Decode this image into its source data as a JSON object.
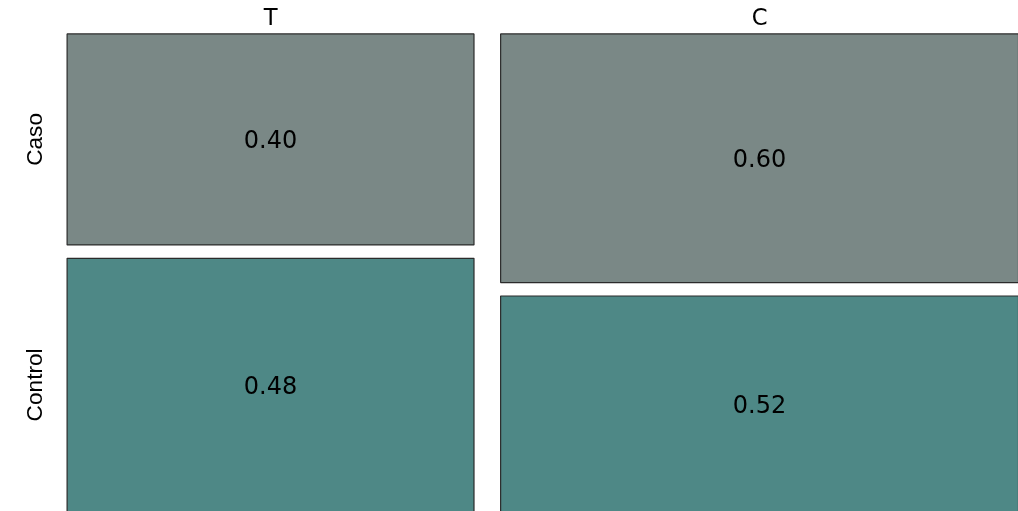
{
  "chart_data": {
    "type": "heatmap",
    "categories": [
      "T",
      "C"
    ],
    "y_categories": [
      "Caso",
      "Control"
    ],
    "cells": [
      [
        0.4,
        0.6
      ],
      [
        0.48,
        0.52
      ]
    ],
    "cell_labels": [
      [
        "0.40",
        "0.60"
      ],
      [
        "0.48",
        "0.52"
      ]
    ],
    "colors": [
      "#7a8886",
      "#4e8886"
    ]
  }
}
